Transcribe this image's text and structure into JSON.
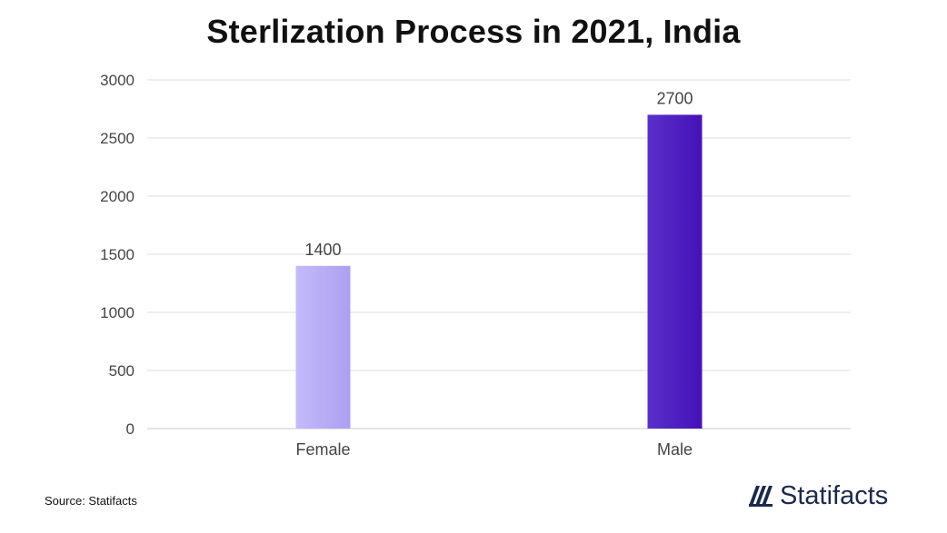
{
  "chart_data": {
    "type": "bar",
    "title": "Sterlization Process in 2021, India",
    "categories": [
      "Female",
      "Male"
    ],
    "values": [
      1400,
      2700
    ],
    "value_labels": [
      "1400",
      "2700"
    ],
    "y_ticks": [
      0,
      500,
      1000,
      1500,
      2000,
      2500,
      3000
    ],
    "ylim": [
      0,
      3000
    ],
    "xlabel": "",
    "ylabel": "",
    "grid": true,
    "legend": "none",
    "bar_colors": [
      {
        "start": "#c3bbfb",
        "end": "#ad9ff0"
      },
      {
        "start": "#5a30c9",
        "end": "#4412b8"
      }
    ]
  },
  "footer": {
    "source": "Source: Statifacts",
    "brand": "Statifacts",
    "brand_icon": "statifacts-logo-icon",
    "brand_color": "#1c2a4a"
  }
}
